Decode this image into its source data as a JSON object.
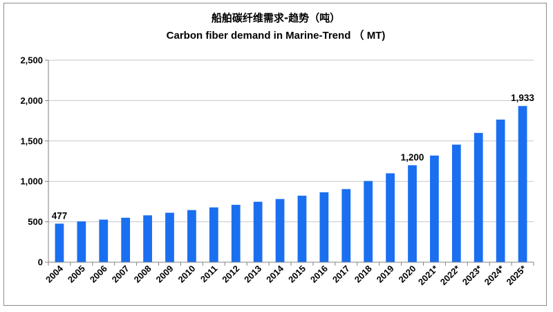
{
  "chart_data": {
    "type": "bar",
    "title": "船舶碳纤维需求-趋势（吨）",
    "subtitle": "Carbon fiber demand  in Marine-Trend （ MT)",
    "xlabel": "",
    "ylabel": "",
    "categories": [
      "2004",
      "2005",
      "2006",
      "2007",
      "2008",
      "2009",
      "2010",
      "2011",
      "2012",
      "2013",
      "2014",
      "2015",
      "2016",
      "2017",
      "2018",
      "2019",
      "2020",
      "2021*",
      "2022*",
      "2023*",
      "2024*",
      "2025*"
    ],
    "values": [
      477,
      505,
      527,
      550,
      580,
      612,
      645,
      678,
      710,
      748,
      782,
      823,
      865,
      905,
      1005,
      1100,
      1200,
      1320,
      1455,
      1600,
      1765,
      1933
    ],
    "data_labels": [
      {
        "index": 0,
        "text": "477"
      },
      {
        "index": 16,
        "text": "1,200"
      },
      {
        "index": 21,
        "text": "1,933"
      }
    ],
    "ylim": [
      0,
      2500
    ],
    "yticks": [
      "0",
      "500",
      "1,000",
      "1,500",
      "2,000",
      "2,500"
    ],
    "grid": true,
    "legend": "none",
    "colors": {
      "bar": "#1a6ff0",
      "grid": "#c6c6c6",
      "axis": "#808080"
    }
  }
}
